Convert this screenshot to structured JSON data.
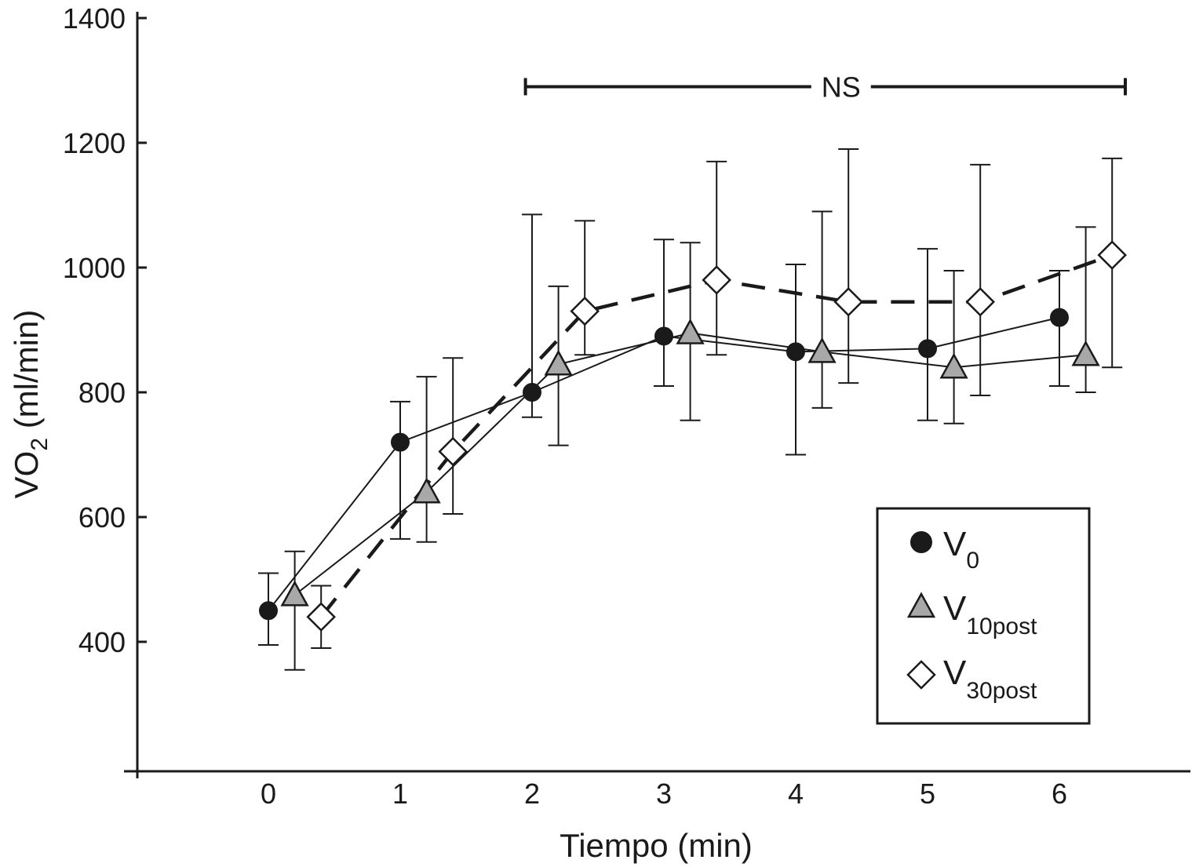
{
  "chart_data": {
    "type": "line",
    "title": "",
    "xlabel": "Tiempo (min)",
    "ylabel": {
      "main": "VO",
      "sub": "2",
      "rest": " (ml/min)"
    },
    "x_ticks": [
      "0",
      "1",
      "2",
      "3",
      "4",
      "5",
      "6"
    ],
    "y_ticks": [
      "400",
      "600",
      "800",
      "1000",
      "1200",
      "1400"
    ],
    "xlim": [
      -1,
      7
    ],
    "ylim": [
      200,
      1400
    ],
    "x_offset_note": "",
    "series": [
      {
        "key": "v0",
        "legend_main": "V",
        "legend_sub": "0",
        "marker": "circle",
        "fill": "#1a1a1a",
        "line": "solid",
        "x": [
          0,
          1,
          2,
          3,
          4,
          5,
          6
        ],
        "values": [
          450,
          720,
          800,
          890,
          865,
          870,
          920
        ],
        "err_low": [
          395,
          565,
          760,
          810,
          700,
          755,
          810
        ],
        "err_high": [
          510,
          785,
          1085,
          1045,
          1005,
          1030,
          995
        ]
      },
      {
        "key": "v10post",
        "legend_main": "V",
        "legend_sub": "10post",
        "marker": "triangle",
        "fill": "#a8a8a8",
        "line": "solid",
        "x": [
          0.2,
          1.2,
          2.2,
          3.2,
          4.2,
          5.2,
          6.2
        ],
        "values": [
          475,
          640,
          845,
          895,
          865,
          840,
          860
        ],
        "err_low": [
          355,
          560,
          715,
          755,
          775,
          750,
          800
        ],
        "err_high": [
          545,
          825,
          970,
          1040,
          1090,
          995,
          1065
        ]
      },
      {
        "key": "v30post",
        "legend_main": "V",
        "legend_sub": "30post",
        "marker": "diamond",
        "fill": "#ffffff",
        "line": "dashed",
        "x": [
          0.4,
          1.4,
          2.4,
          3.4,
          4.4,
          5.4,
          6.4
        ],
        "values": [
          440,
          705,
          930,
          980,
          945,
          945,
          1020
        ],
        "err_low": [
          390,
          605,
          860,
          860,
          815,
          795,
          840
        ],
        "err_high": [
          490,
          855,
          1075,
          1170,
          1190,
          1165,
          1175
        ]
      }
    ],
    "annotation": {
      "text": "NS",
      "x_start": 1.95,
      "x_end": 6.5,
      "y": 1290
    },
    "legend_position": "bottom-right",
    "grid": false
  }
}
